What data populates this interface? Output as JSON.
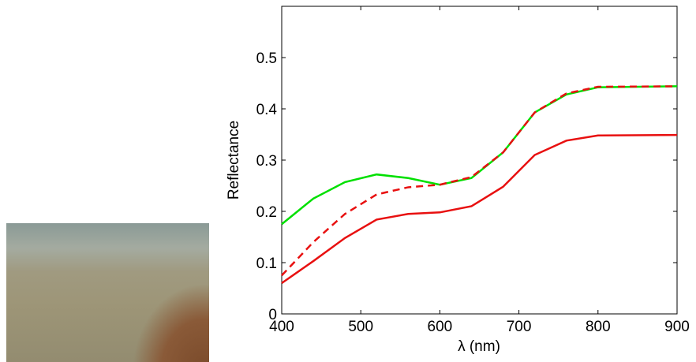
{
  "chart_data": {
    "type": "line",
    "x_label": "λ (nm)",
    "y_label": "Reflectance",
    "x": [
      400,
      440,
      480,
      520,
      560,
      600,
      640,
      680,
      720,
      760,
      800,
      900
    ],
    "series": [
      {
        "color": "#00e000",
        "style": "solid",
        "values": [
          0.175,
          0.225,
          0.257,
          0.272,
          0.265,
          0.252,
          0.265,
          0.315,
          0.393,
          0.428,
          0.442,
          0.444
        ]
      },
      {
        "color": "#e81010",
        "style": "dashed",
        "values": [
          0.075,
          0.14,
          0.195,
          0.233,
          0.247,
          0.252,
          0.267,
          0.315,
          0.393,
          0.43,
          0.443,
          0.444
        ]
      },
      {
        "color": "#e81010",
        "style": "solid",
        "values": [
          0.06,
          0.103,
          0.148,
          0.184,
          0.195,
          0.198,
          0.21,
          0.248,
          0.31,
          0.338,
          0.348,
          0.349
        ]
      }
    ],
    "xlim": [
      400,
      900
    ],
    "xticks": [
      400,
      500,
      600,
      700,
      800,
      900
    ],
    "ylim": [
      0,
      0.6
    ],
    "yticks": [
      0,
      0.1,
      0.2,
      0.3,
      0.4,
      0.5
    ]
  }
}
